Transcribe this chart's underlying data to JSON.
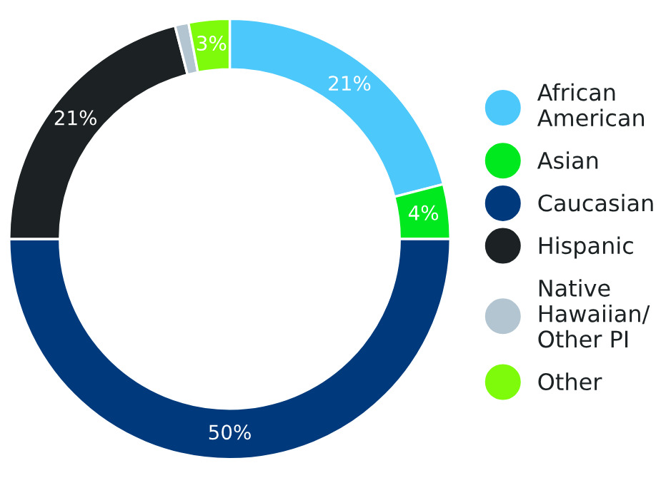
{
  "chart_data": {
    "type": "donut",
    "categories": [
      "African\nAmerican",
      "Asian",
      "Caucasian",
      "Hispanic",
      "Native\nHawaiian/\nOther PI",
      "Other"
    ],
    "values": [
      21,
      4,
      50,
      21,
      1,
      3
    ],
    "colors": [
      "#4dc8fb",
      "#00e91f",
      "#003a7c",
      "#1c2223",
      "#b3c5d1",
      "#7dfb0a"
    ],
    "value_labels": [
      "21%",
      "4%",
      "50%",
      "21%",
      null,
      "3%"
    ],
    "legend": "right"
  }
}
